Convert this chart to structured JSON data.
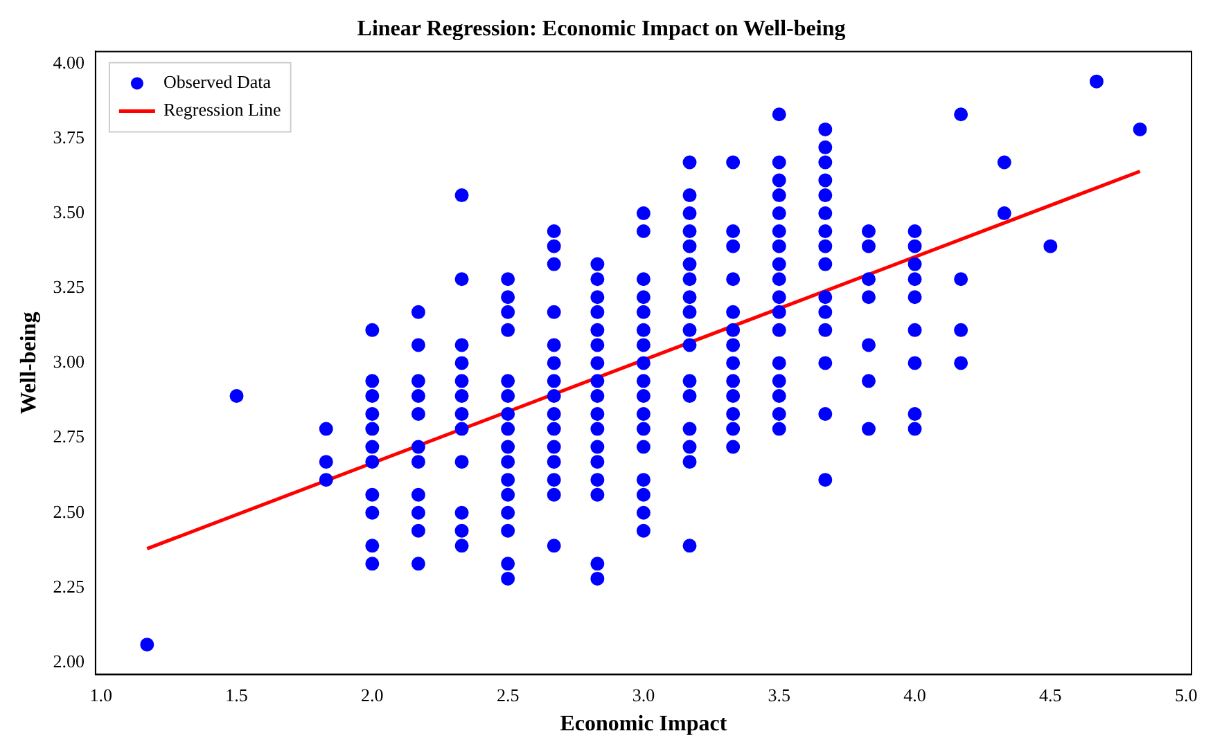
{
  "chart_data": {
    "type": "scatter",
    "title": "Linear Regression: Economic Impact on Well-being",
    "xlabel": "Economic Impact",
    "ylabel": "Well-being",
    "xlim": [
      0.98,
      5.02
    ],
    "xticks": [
      {
        "value": 1,
        "label": "1.0"
      },
      1.5,
      {
        "value": 2,
        "label": "2.0"
      },
      2.5,
      {
        "value": 3,
        "label": "3.0"
      },
      3.5,
      {
        "value": 4,
        "label": "4.0"
      },
      4.5,
      {
        "value": 5,
        "label": "5.0"
      }
    ],
    "ylim": [
      1.96,
      4.04
    ],
    "yticks": [
      {
        "value": 2,
        "label": "2.00"
      },
      2.25,
      {
        "value": 2.5,
        "label": "2.50"
      },
      2.75,
      {
        "value": 3,
        "label": "3.00"
      },
      3.25,
      {
        "value": 3.5,
        "label": "3.50"
      },
      3.75,
      {
        "value": 4,
        "label": "4.00"
      }
    ],
    "grid": false,
    "legend": "top left",
    "series": [
      {
        "name": "Observed Data",
        "type": "scatter",
        "marker": "circle",
        "color": "#0000ff",
        "x": [
          1.17,
          1.5,
          1.83,
          1.83,
          1.83,
          2.0,
          2.0,
          2.0,
          2.0,
          2.0,
          2.0,
          2.0,
          2.0,
          2.0,
          2.0,
          2.0,
          2.17,
          2.17,
          2.17,
          2.17,
          2.17,
          2.17,
          2.17,
          2.17,
          2.17,
          2.17,
          2.17,
          2.33,
          2.33,
          2.33,
          2.33,
          2.33,
          2.33,
          2.33,
          2.33,
          2.33,
          2.33,
          2.33,
          2.33,
          2.5,
          2.5,
          2.5,
          2.5,
          2.5,
          2.5,
          2.5,
          2.5,
          2.5,
          2.5,
          2.5,
          2.5,
          2.5,
          2.5,
          2.5,
          2.5,
          2.67,
          2.67,
          2.67,
          2.67,
          2.67,
          2.67,
          2.67,
          2.67,
          2.67,
          2.67,
          2.67,
          2.67,
          2.67,
          2.67,
          2.67,
          2.83,
          2.83,
          2.83,
          2.83,
          2.83,
          2.83,
          2.83,
          2.83,
          2.83,
          2.83,
          2.83,
          2.83,
          2.83,
          2.83,
          2.83,
          2.83,
          2.83,
          3.0,
          3.0,
          3.0,
          3.0,
          3.0,
          3.0,
          3.0,
          3.0,
          3.0,
          3.0,
          3.0,
          3.0,
          3.0,
          3.0,
          3.0,
          3.0,
          3.0,
          3.17,
          3.17,
          3.17,
          3.17,
          3.17,
          3.17,
          3.17,
          3.17,
          3.17,
          3.17,
          3.17,
          3.17,
          3.17,
          3.17,
          3.17,
          3.17,
          3.17,
          3.33,
          3.33,
          3.33,
          3.33,
          3.33,
          3.33,
          3.33,
          3.33,
          3.33,
          3.33,
          3.33,
          3.33,
          3.33,
          3.5,
          3.5,
          3.5,
          3.5,
          3.5,
          3.5,
          3.5,
          3.5,
          3.5,
          3.5,
          3.5,
          3.5,
          3.5,
          3.5,
          3.5,
          3.5,
          3.5,
          3.67,
          3.67,
          3.67,
          3.67,
          3.67,
          3.67,
          3.67,
          3.67,
          3.67,
          3.67,
          3.67,
          3.67,
          3.67,
          3.67,
          3.67,
          3.83,
          3.83,
          3.83,
          3.83,
          3.83,
          3.83,
          3.83,
          4.0,
          4.0,
          4.0,
          4.0,
          4.0,
          4.0,
          4.0,
          4.0,
          4.0,
          4.17,
          4.17,
          4.17,
          4.17,
          4.33,
          4.33,
          4.5,
          4.67,
          4.83
        ],
        "values": [
          2.06,
          2.89,
          2.78,
          2.67,
          2.61,
          3.11,
          2.94,
          2.89,
          2.83,
          2.78,
          2.72,
          2.67,
          2.56,
          2.5,
          2.39,
          2.33,
          3.17,
          3.06,
          2.94,
          2.89,
          2.83,
          2.72,
          2.67,
          2.56,
          2.5,
          2.44,
          2.33,
          3.56,
          3.28,
          3.06,
          3.0,
          2.94,
          2.89,
          2.83,
          2.78,
          2.67,
          2.5,
          2.44,
          2.39,
          3.28,
          3.22,
          3.17,
          3.11,
          2.94,
          2.89,
          2.83,
          2.78,
          2.72,
          2.67,
          2.61,
          2.56,
          2.5,
          2.44,
          2.33,
          2.28,
          3.44,
          3.39,
          3.33,
          3.17,
          3.06,
          3.0,
          2.94,
          2.89,
          2.83,
          2.78,
          2.72,
          2.67,
          2.61,
          2.56,
          2.39,
          3.33,
          3.28,
          3.22,
          3.17,
          3.11,
          3.06,
          3.0,
          2.94,
          2.89,
          2.83,
          2.78,
          2.72,
          2.67,
          2.61,
          2.56,
          2.33,
          2.28,
          3.5,
          3.44,
          3.28,
          3.22,
          3.17,
          3.11,
          3.06,
          3.0,
          2.94,
          2.89,
          2.83,
          2.78,
          2.72,
          2.61,
          2.56,
          2.5,
          2.44,
          3.67,
          3.56,
          3.5,
          3.44,
          3.39,
          3.33,
          3.28,
          3.22,
          3.17,
          3.11,
          3.06,
          2.94,
          2.89,
          2.78,
          2.72,
          2.67,
          2.39,
          3.67,
          3.44,
          3.39,
          3.28,
          3.17,
          3.11,
          3.06,
          3.0,
          2.94,
          2.89,
          2.83,
          2.78,
          2.72,
          3.83,
          3.67,
          3.61,
          3.56,
          3.5,
          3.44,
          3.39,
          3.33,
          3.28,
          3.22,
          3.17,
          3.11,
          3.0,
          2.94,
          2.89,
          2.83,
          2.78,
          3.78,
          3.72,
          3.67,
          3.61,
          3.56,
          3.5,
          3.44,
          3.39,
          3.33,
          3.22,
          3.17,
          3.11,
          3.0,
          2.83,
          2.61,
          3.44,
          3.39,
          3.28,
          3.22,
          3.06,
          2.94,
          2.78,
          3.44,
          3.39,
          3.33,
          3.28,
          3.22,
          3.11,
          3.0,
          2.83,
          2.78,
          3.83,
          3.28,
          3.11,
          3.0,
          3.67,
          3.5,
          3.39,
          3.94,
          3.78
        ]
      },
      {
        "name": "Regression Line",
        "type": "line",
        "marker": "none",
        "color": "#ff0000",
        "x": [
          1.17,
          4.83
        ],
        "values": [
          2.38,
          3.64
        ]
      }
    ]
  }
}
